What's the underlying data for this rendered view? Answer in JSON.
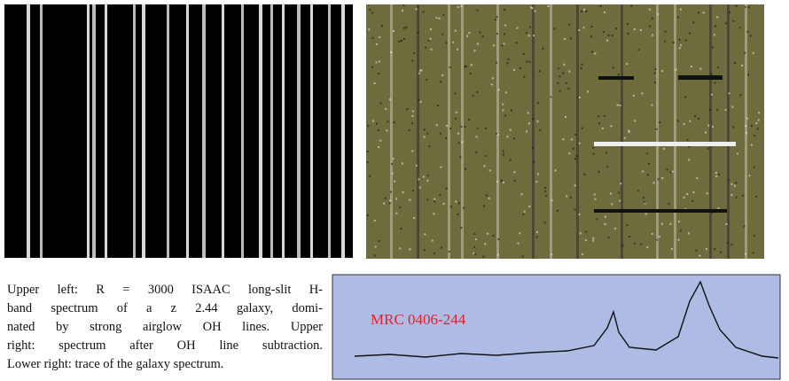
{
  "figure": {
    "inset_label": "MRC 0406-244"
  },
  "caption": {
    "lines": [
      "Upper left: R = 3000 ISAAC long-slit H-",
      "band spectrum of a z 2.44 galaxy, domi-",
      "nated by strong airglow OH lines. Upper",
      "right: spectrum after OH line subtraction.",
      "Lower right: trace of the galaxy spectrum."
    ]
  }
}
